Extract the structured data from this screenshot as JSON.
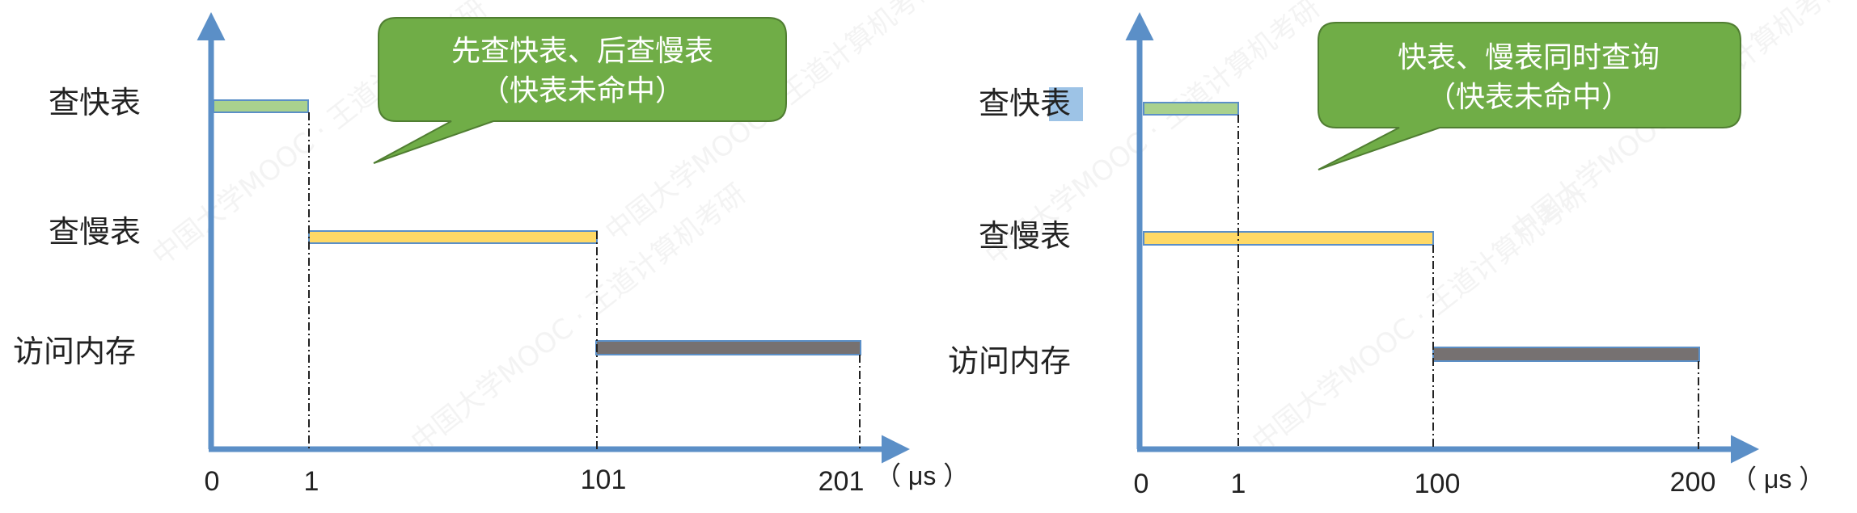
{
  "diagrams": [
    {
      "row_labels": [
        "查快表",
        "查慢表",
        "访问内存"
      ],
      "highlight_chars": "",
      "callout": {
        "line1": "先查快表、后查慢表",
        "line2": "（快表未命中）"
      },
      "ticks": [
        "0",
        "1",
        "101",
        "201"
      ],
      "unit": "（ μs ）",
      "bars": [
        {
          "row": "查快表",
          "start": 0,
          "end": 1,
          "color": "#a9d18e",
          "border": "#5b8fc7"
        },
        {
          "row": "查慢表",
          "start": 1,
          "end": 101,
          "color": "#ffd966",
          "border": "#5b8fc7"
        },
        {
          "row": "访问内存",
          "start": 101,
          "end": 201,
          "color": "#767171",
          "border": "#5b8fc7"
        }
      ]
    },
    {
      "row_labels": [
        "查快表",
        "查慢表",
        "访问内存"
      ],
      "highlight_chars": "表",
      "callout": {
        "line1": "快表、慢表同时查询",
        "line2": "（快表未命中）"
      },
      "ticks": [
        "0",
        "1",
        "100",
        "200"
      ],
      "unit": "（ μs ）",
      "bars": [
        {
          "row": "查快表",
          "start": 0,
          "end": 1,
          "color": "#a9d18e",
          "border": "#5b8fc7"
        },
        {
          "row": "查慢表",
          "start": 0,
          "end": 100,
          "color": "#ffd966",
          "border": "#5b8fc7"
        },
        {
          "row": "访问内存",
          "start": 100,
          "end": 200,
          "color": "#767171",
          "border": "#5b8fc7"
        }
      ]
    }
  ],
  "colors": {
    "axis": "#5b8fc7",
    "callout_fill": "#70ad47",
    "callout_border": "#507e32",
    "highlight": "#9dc3e6"
  },
  "watermark": "中国大学MOOC · 王道计算机考研"
}
